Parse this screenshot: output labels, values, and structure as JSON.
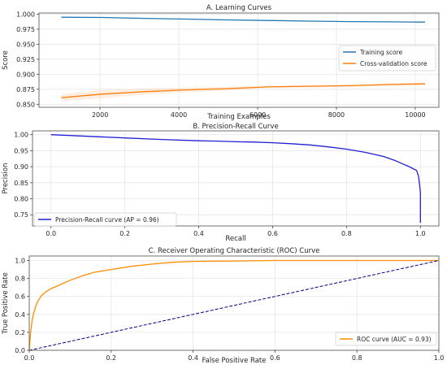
{
  "chart_data": [
    {
      "type": "line",
      "title": "A. Learning Curves",
      "xlabel": "Training Examples",
      "ylabel": "Score",
      "xlim": [
        450,
        10600
      ],
      "ylim": [
        0.845,
        1.002
      ],
      "xticks": [
        2000,
        4000,
        6000,
        8000,
        10000
      ],
      "yticks": [
        0.85,
        0.875,
        0.9,
        0.925,
        0.95,
        0.975,
        1.0
      ],
      "xtick_labels": [
        "2000",
        "4000",
        "6000",
        "8000",
        "10000"
      ],
      "ytick_labels": [
        "0.850",
        "0.875",
        "0.900",
        "0.925",
        "0.950",
        "0.975",
        "1.000"
      ],
      "grid": true,
      "legend_position": "center-right",
      "series": [
        {
          "name": "Training score",
          "color": "#1f77b4",
          "x": [
            1020,
            2070,
            3120,
            4170,
            5220,
            6270,
            7320,
            8370,
            9420,
            10250
          ],
          "y": [
            0.995,
            0.9945,
            0.993,
            0.9918,
            0.9905,
            0.9895,
            0.9885,
            0.9877,
            0.9872,
            0.9868
          ]
        },
        {
          "name": "Cross-validation score",
          "color": "#ff7f0e",
          "x": [
            1020,
            2070,
            3120,
            4170,
            5220,
            6270,
            7320,
            8370,
            9420,
            10250
          ],
          "y": [
            0.861,
            0.867,
            0.871,
            0.874,
            0.876,
            0.879,
            0.88,
            0.881,
            0.883,
            0.884
          ],
          "band_upper": [
            0.867,
            0.874,
            0.876,
            0.878,
            0.879,
            0.881,
            0.882,
            0.883,
            0.885,
            0.886
          ],
          "band_lower": [
            0.855,
            0.86,
            0.866,
            0.87,
            0.873,
            0.877,
            0.878,
            0.879,
            0.881,
            0.882
          ]
        }
      ]
    },
    {
      "type": "line",
      "title": "B. Precision-Recall Curve",
      "xlabel": "Recall",
      "ylabel": "Precision",
      "xlim": [
        -0.05,
        1.05
      ],
      "ylim": [
        0.715,
        1.012
      ],
      "xticks": [
        0.0,
        0.2,
        0.4,
        0.6,
        0.8,
        1.0
      ],
      "yticks": [
        0.75,
        0.8,
        0.85,
        0.9,
        0.95,
        1.0
      ],
      "xtick_labels": [
        "0.0",
        "0.2",
        "0.4",
        "0.6",
        "0.8",
        "1.0"
      ],
      "ytick_labels": [
        "0.75",
        "0.80",
        "0.85",
        "0.90",
        "0.95",
        "1.00"
      ],
      "grid": true,
      "legend_position": "lower-left",
      "series": [
        {
          "name": "Precision-Recall curve (AP = 0.96)",
          "color": "#1f1fd6",
          "x": [
            0.0,
            0.1,
            0.2,
            0.3,
            0.4,
            0.45,
            0.5,
            0.55,
            0.6,
            0.65,
            0.7,
            0.75,
            0.8,
            0.85,
            0.9,
            0.93,
            0.95,
            0.97,
            0.98,
            0.99,
            0.995,
            1.0,
            1.0
          ],
          "y": [
            1.0,
            0.995,
            0.99,
            0.985,
            0.981,
            0.98,
            0.978,
            0.977,
            0.975,
            0.972,
            0.968,
            0.962,
            0.955,
            0.945,
            0.932,
            0.92,
            0.91,
            0.9,
            0.894,
            0.888,
            0.87,
            0.82,
            0.725
          ]
        }
      ]
    },
    {
      "type": "line",
      "title": "C. Receiver Operating Characteristic (ROC) Curve",
      "xlabel": "False Positive Rate",
      "ylabel": "True Positive Rate",
      "xlim": [
        0.0,
        1.0
      ],
      "ylim": [
        0.0,
        1.05
      ],
      "xticks": [
        0.0,
        0.2,
        0.4,
        0.6,
        0.8,
        1.0
      ],
      "yticks": [
        0.0,
        0.2,
        0.4,
        0.6,
        0.8,
        1.0
      ],
      "xtick_labels": [
        "0.0",
        "0.2",
        "0.4",
        "0.6",
        "0.8",
        "1.0"
      ],
      "ytick_labels": [
        "0.0",
        "0.2",
        "0.4",
        "0.6",
        "0.8",
        "1.0"
      ],
      "grid": true,
      "legend_position": "lower-right",
      "series": [
        {
          "name": "ROC curve (AUC = 0.93)",
          "color": "#ff8c00",
          "x": [
            0.0,
            0.003,
            0.006,
            0.01,
            0.015,
            0.02,
            0.03,
            0.04,
            0.05,
            0.07,
            0.1,
            0.13,
            0.16,
            0.2,
            0.25,
            0.3,
            0.35,
            0.4,
            0.5,
            0.6,
            0.8,
            1.0
          ],
          "y": [
            0.0,
            0.18,
            0.3,
            0.4,
            0.48,
            0.54,
            0.61,
            0.65,
            0.68,
            0.72,
            0.78,
            0.83,
            0.87,
            0.9,
            0.935,
            0.96,
            0.98,
            0.99,
            0.995,
            1.0,
            1.0,
            1.0
          ]
        },
        {
          "name": "",
          "color": "#000080",
          "dashed": true,
          "x": [
            0.0,
            1.0
          ],
          "y": [
            0.0,
            1.0
          ]
        }
      ]
    }
  ]
}
